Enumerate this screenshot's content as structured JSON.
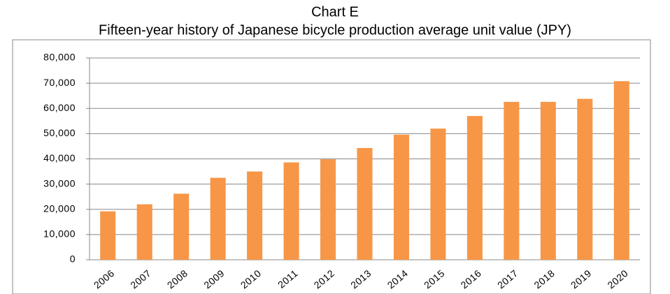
{
  "chart_data": {
    "type": "bar",
    "title": "Chart E",
    "subtitle": "Fifteen-year history of Japanese bicycle production average unit value (JPY)",
    "categories": [
      "2006",
      "2007",
      "2008",
      "2009",
      "2010",
      "2011",
      "2012",
      "2013",
      "2014",
      "2015",
      "2016",
      "2017",
      "2018",
      "2019",
      "2020"
    ],
    "values": [
      19200,
      22000,
      26200,
      32500,
      35000,
      38600,
      39800,
      44300,
      49600,
      52000,
      57000,
      62600,
      62600,
      63800,
      70800
    ],
    "color": "#f79646",
    "ylim": [
      0,
      80000
    ],
    "yticks": [
      0,
      {
        "value": 10000,
        "label": "10,000"
      },
      {
        "value": 20000,
        "label": "20,000"
      },
      {
        "value": 30000,
        "label": "30,000"
      },
      {
        "value": 40000,
        "label": "40,000"
      },
      {
        "value": 50000,
        "label": "50,000"
      },
      {
        "value": 60000,
        "label": "60,000"
      },
      {
        "value": 70000,
        "label": "70,000"
      },
      {
        "value": 80000,
        "label": "80,000"
      }
    ],
    "grid": true
  }
}
